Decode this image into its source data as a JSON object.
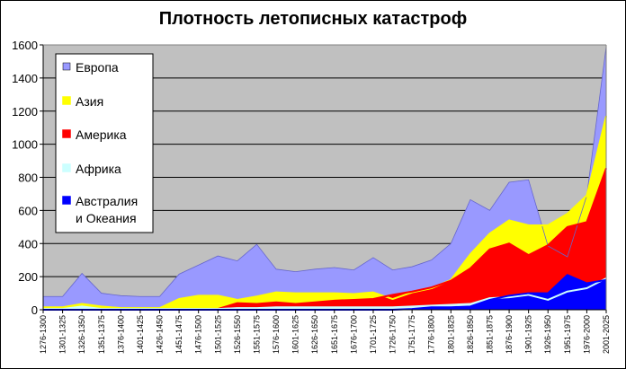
{
  "chart_data": {
    "type": "area",
    "title": "Плотность летописных катастроф",
    "xlabel": "",
    "ylabel": "",
    "ylim": [
      0,
      1600
    ],
    "yticks": [
      0,
      200,
      400,
      600,
      800,
      1000,
      1200,
      1400,
      1600
    ],
    "grid": "horizontal",
    "legend_position": "top-left",
    "categories": [
      "1276-1300",
      "1301-1325",
      "1326-1350",
      "1351-1375",
      "1376-1400",
      "1401-1425",
      "1426-1450",
      "1451-1475",
      "1476-1500",
      "1501-1525",
      "1526-1550",
      "1551-1575",
      "1576-1600",
      "1601-1625",
      "1626-1650",
      "1651-1675",
      "1676-1700",
      "1701-1725",
      "1726-1750",
      "1751-1775",
      "1776-1800",
      "1801-1825",
      "1826-1850",
      "1851-1875",
      "1876-1900",
      "1901-1925",
      "1926-1950",
      "1951-1975",
      "1976-2000",
      "2001-2025"
    ],
    "xtick_labels": [
      "1276-1300",
      "1301-1325",
      "1326-1350",
      "1351-1375",
      "1376-1400",
      "1401-1425",
      "1426-1450",
      "1451-1475",
      "1476-1500",
      "1501-1525",
      "1526-1550",
      "1551-1575",
      "1576-1600",
      "1601-1625",
      "1626-1650",
      "1651-1675",
      "1676-1700",
      "1701-1725",
      "1726-1750",
      "1751-1775",
      "1776-1800",
      "1801-1825",
      "1826-1850",
      "1851-1875",
      "1876-1900",
      "1901-1925",
      "1926-1950",
      "1951-1975",
      "1976-2000",
      "2001-2025"
    ],
    "series": [
      {
        "name": "Европа",
        "color": "#9999FF",
        "values": [
          80,
          80,
          220,
          100,
          85,
          80,
          80,
          215,
          270,
          325,
          295,
          395,
          245,
          230,
          245,
          255,
          240,
          315,
          240,
          260,
          300,
          400,
          665,
          600,
          770,
          785,
          385,
          320,
          690,
          1590
        ]
      },
      {
        "name": "Азия",
        "color": "#FFFF00",
        "values": [
          15,
          15,
          35,
          20,
          10,
          10,
          10,
          65,
          85,
          85,
          60,
          80,
          105,
          100,
          100,
          100,
          95,
          105,
          65,
          105,
          130,
          180,
          335,
          460,
          540,
          510,
          510,
          580,
          690,
          1170
        ]
      },
      {
        "name": "Америка",
        "color": "#FF0000",
        "values": [
          0,
          0,
          0,
          0,
          0,
          0,
          0,
          0,
          0,
          5,
          40,
          35,
          45,
          35,
          45,
          55,
          60,
          65,
          90,
          110,
          135,
          175,
          250,
          365,
          400,
          330,
          390,
          500,
          530,
          855
        ]
      },
      {
        "name": "Африка",
        "color": "#CCFFFF",
        "values": [
          5,
          5,
          20,
          5,
          5,
          5,
          5,
          5,
          5,
          5,
          10,
          10,
          15,
          15,
          15,
          15,
          15,
          15,
          15,
          20,
          25,
          30,
          35,
          70,
          75,
          90,
          60,
          110,
          130,
          190
        ]
      },
      {
        "name": "Австралия и Океания",
        "legend_lines": [
          "Австралия",
          "и Океания"
        ],
        "color": "#0000FF",
        "values": [
          0,
          0,
          0,
          0,
          0,
          0,
          0,
          0,
          0,
          0,
          0,
          0,
          0,
          0,
          0,
          0,
          0,
          0,
          0,
          5,
          15,
          15,
          20,
          60,
          85,
          100,
          100,
          210,
          160,
          180
        ]
      }
    ]
  }
}
